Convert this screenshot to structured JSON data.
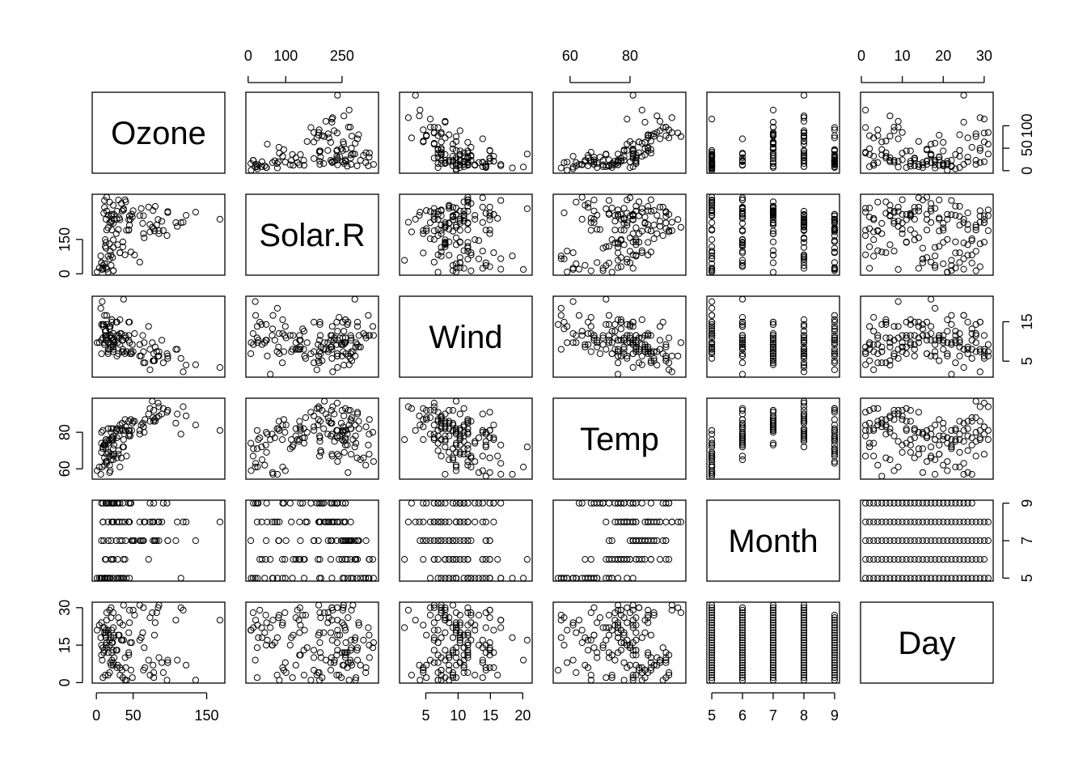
{
  "chart_data": {
    "type": "scatter",
    "kind": "scatterplot-matrix",
    "title": "",
    "variables": [
      {
        "name": "Ozone",
        "range": [
          1,
          168
        ],
        "ticks": [
          0,
          50,
          150
        ],
        "tick_side": "bottom",
        "values": [
          41,
          36,
          12,
          18,
          null,
          28,
          23,
          19,
          8,
          null,
          7,
          16,
          11,
          14,
          18,
          14,
          34,
          6,
          30,
          11,
          1,
          11,
          4,
          32,
          null,
          null,
          null,
          23,
          45,
          115,
          37,
          null,
          null,
          null,
          null,
          null,
          null,
          29,
          null,
          71,
          39,
          null,
          null,
          23,
          null,
          null,
          21,
          37,
          20,
          12,
          13,
          null,
          null,
          null,
          null,
          null,
          null,
          null,
          null,
          null,
          null,
          135,
          49,
          32,
          null,
          64,
          40,
          77,
          97,
          97,
          85,
          null,
          10,
          27,
          null,
          7,
          48,
          35,
          61,
          79,
          63,
          16,
          null,
          null,
          80,
          108,
          20,
          52,
          82,
          50,
          64,
          59,
          39,
          9,
          16,
          78,
          35,
          66,
          122,
          89,
          110,
          null,
          null,
          44,
          28,
          65,
          null,
          22,
          59,
          23,
          31,
          44,
          21,
          9,
          null,
          45,
          168,
          73,
          null,
          76,
          118,
          84,
          85,
          96,
          78,
          73,
          91,
          47,
          32,
          20,
          23,
          21,
          24,
          44,
          21,
          28,
          9,
          13,
          46,
          18,
          13,
          24,
          16,
          13,
          23,
          36,
          7,
          14,
          30,
          null,
          14,
          18,
          20
        ]
      },
      {
        "name": "Solar.R",
        "range": [
          7,
          334
        ],
        "ticks": [
          0,
          100,
          250
        ],
        "tick_side": "top",
        "values": [
          190,
          118,
          149,
          313,
          null,
          null,
          299,
          99,
          19,
          194,
          null,
          256,
          290,
          274,
          65,
          334,
          307,
          78,
          322,
          44,
          8,
          320,
          25,
          92,
          66,
          266,
          null,
          13,
          252,
          223,
          279,
          286,
          287,
          242,
          186,
          220,
          264,
          127,
          273,
          291,
          323,
          259,
          250,
          148,
          332,
          322,
          191,
          284,
          37,
          120,
          137,
          150,
          59,
          91,
          250,
          135,
          127,
          47,
          98,
          31,
          138,
          269,
          248,
          236,
          101,
          175,
          314,
          276,
          267,
          272,
          175,
          139,
          264,
          175,
          291,
          48,
          260,
          274,
          285,
          187,
          220,
          7,
          258,
          295,
          294,
          223,
          81,
          82,
          213,
          275,
          253,
          254,
          83,
          24,
          77,
          null,
          null,
          null,
          255,
          229,
          207,
          222,
          137,
          192,
          273,
          157,
          64,
          71,
          51,
          115,
          244,
          190,
          259,
          36,
          255,
          212,
          238,
          215,
          153,
          203,
          225,
          237,
          188,
          167,
          197,
          183,
          189,
          95,
          92,
          252,
          220,
          230,
          259,
          236,
          259,
          238,
          24,
          112,
          237,
          224,
          27,
          238,
          201,
          238,
          14,
          139,
          49,
          20,
          193,
          145,
          191,
          131,
          223
        ]
      },
      {
        "name": "Wind",
        "range": [
          1.7,
          20.7
        ],
        "ticks": [
          5,
          10,
          15,
          20
        ],
        "tick_side": "bottom",
        "values": [
          7.4,
          8,
          12.6,
          11.5,
          14.3,
          14.9,
          8.6,
          13.8,
          20.1,
          8.6,
          6.9,
          9.7,
          9.2,
          10.9,
          13.2,
          11.5,
          12,
          18.4,
          11.5,
          9.7,
          9.7,
          16.6,
          9.7,
          12,
          16.6,
          14.9,
          8,
          12,
          14.9,
          5.7,
          7.4,
          8.6,
          9.7,
          16.1,
          9.2,
          8.6,
          14.3,
          9.7,
          6.9,
          13.8,
          11.5,
          10.9,
          9.2,
          8,
          13.8,
          11.5,
          14.9,
          20.7,
          9.2,
          11.5,
          10.3,
          6.3,
          1.7,
          4.6,
          6.3,
          8,
          8,
          10.3,
          11.5,
          14.9,
          8,
          4.1,
          9.2,
          9.2,
          10.9,
          4.6,
          10.9,
          5.1,
          6.3,
          5.7,
          7.4,
          8.6,
          14.3,
          14.9,
          14.9,
          14.3,
          6.9,
          10.3,
          6.3,
          5.1,
          11.5,
          6.9,
          9.7,
          11.5,
          8.6,
          8,
          8.6,
          12,
          7.4,
          7.4,
          7.4,
          9.2,
          6.9,
          13.8,
          7.4,
          6.9,
          7.4,
          4.6,
          4,
          10.3,
          8,
          8.6,
          11.5,
          11.5,
          11.5,
          9.7,
          11.5,
          10.3,
          6.3,
          7.4,
          10.9,
          10.3,
          15.5,
          14.3,
          12.6,
          9.7,
          3.4,
          8,
          5.7,
          9.7,
          2.3,
          6.3,
          6.3,
          6.9,
          5.1,
          2.8,
          4.6,
          7.4,
          15.5,
          10.9,
          10.3,
          10.9,
          9.7,
          14.9,
          15.5,
          6.3,
          10.9,
          11.5,
          6.9,
          13.8,
          10.3,
          10.3,
          8,
          12.6,
          9.2,
          10.3,
          10.3,
          16.6,
          6.9,
          13.2,
          14.3,
          8,
          11.5
        ]
      },
      {
        "name": "Temp",
        "range": [
          56,
          97
        ],
        "ticks": [
          60,
          80
        ],
        "tick_side": "top",
        "values": [
          67,
          72,
          74,
          62,
          56,
          66,
          65,
          59,
          61,
          69,
          74,
          69,
          66,
          68,
          58,
          64,
          66,
          57,
          68,
          62,
          59,
          73,
          61,
          61,
          57,
          58,
          57,
          67,
          81,
          79,
          76,
          78,
          74,
          67,
          84,
          85,
          79,
          82,
          87,
          90,
          87,
          93,
          92,
          82,
          80,
          79,
          77,
          72,
          65,
          73,
          76,
          77,
          76,
          76,
          76,
          75,
          78,
          73,
          80,
          77,
          83,
          84,
          85,
          81,
          84,
          83,
          83,
          88,
          92,
          92,
          89,
          82,
          73,
          81,
          91,
          80,
          81,
          82,
          84,
          87,
          85,
          74,
          81,
          82,
          86,
          85,
          82,
          86,
          88,
          86,
          83,
          81,
          81,
          81,
          82,
          86,
          85,
          87,
          89,
          90,
          90,
          92,
          86,
          86,
          82,
          80,
          79,
          77,
          79,
          76,
          78,
          78,
          77,
          72,
          75,
          79,
          81,
          86,
          88,
          97,
          94,
          96,
          94,
          91,
          92,
          93,
          93,
          87,
          84,
          80,
          78,
          75,
          73,
          81,
          76,
          77,
          71,
          71,
          78,
          67,
          76,
          68,
          82,
          64,
          71,
          81,
          69,
          63,
          70,
          77,
          75,
          76,
          68
        ]
      },
      {
        "name": "Month",
        "range": [
          5,
          9
        ],
        "ticks": [
          5,
          6,
          7,
          8,
          9
        ],
        "tick_side": "bottom",
        "values": [
          5,
          5,
          5,
          5,
          5,
          5,
          5,
          5,
          5,
          5,
          5,
          5,
          5,
          5,
          5,
          5,
          5,
          5,
          5,
          5,
          5,
          5,
          5,
          5,
          5,
          5,
          5,
          5,
          5,
          5,
          5,
          6,
          6,
          6,
          6,
          6,
          6,
          6,
          6,
          6,
          6,
          6,
          6,
          6,
          6,
          6,
          6,
          6,
          6,
          6,
          6,
          6,
          6,
          6,
          6,
          6,
          6,
          6,
          6,
          6,
          6,
          7,
          7,
          7,
          7,
          7,
          7,
          7,
          7,
          7,
          7,
          7,
          7,
          7,
          7,
          7,
          7,
          7,
          7,
          7,
          7,
          7,
          7,
          7,
          7,
          7,
          7,
          7,
          7,
          7,
          7,
          7,
          8,
          8,
          8,
          8,
          8,
          8,
          8,
          8,
          8,
          8,
          8,
          8,
          8,
          8,
          8,
          8,
          8,
          8,
          8,
          8,
          8,
          8,
          8,
          8,
          8,
          8,
          8,
          8,
          8,
          8,
          8,
          9,
          9,
          9,
          9,
          9,
          9,
          9,
          9,
          9,
          9,
          9,
          9,
          9,
          9,
          9,
          9,
          9,
          9,
          9,
          9,
          9,
          9,
          9,
          9,
          9,
          9,
          9
        ]
      },
      {
        "name": "Day",
        "range": [
          1,
          31
        ],
        "ticks": [
          0,
          10,
          20,
          30
        ],
        "tick_side": "top",
        "values": [
          1,
          2,
          3,
          4,
          5,
          6,
          7,
          8,
          9,
          10,
          11,
          12,
          13,
          14,
          15,
          16,
          17,
          18,
          19,
          20,
          21,
          22,
          23,
          24,
          25,
          26,
          27,
          28,
          29,
          30,
          31,
          1,
          2,
          3,
          4,
          5,
          6,
          7,
          8,
          9,
          10,
          11,
          12,
          13,
          14,
          15,
          16,
          17,
          18,
          19,
          20,
          21,
          22,
          23,
          24,
          25,
          26,
          27,
          28,
          29,
          30,
          1,
          2,
          3,
          4,
          5,
          6,
          7,
          8,
          9,
          10,
          11,
          12,
          13,
          14,
          15,
          16,
          17,
          18,
          19,
          20,
          21,
          22,
          23,
          24,
          25,
          26,
          27,
          28,
          29,
          30,
          31,
          1,
          2,
          3,
          4,
          5,
          6,
          7,
          8,
          9,
          10,
          11,
          12,
          13,
          14,
          15,
          16,
          17,
          18,
          19,
          20,
          21,
          22,
          23,
          24,
          25,
          26,
          27,
          28,
          29,
          30,
          31,
          1,
          2,
          3,
          4,
          5,
          6,
          7,
          8,
          9,
          10,
          11,
          12,
          13,
          14,
          15,
          16,
          17,
          18,
          19,
          20,
          21,
          22,
          23,
          24,
          25,
          26,
          27,
          28,
          29,
          30
        ]
      }
    ],
    "side_ticks": [
      {
        "variable": "Ozone",
        "side": "right",
        "ticks": [
          0,
          50,
          100
        ]
      },
      {
        "variable": "Solar.R",
        "side": "left",
        "ticks": [
          0,
          150
        ]
      },
      {
        "variable": "Wind",
        "side": "right",
        "ticks": [
          5,
          15
        ]
      },
      {
        "variable": "Temp",
        "side": "left",
        "ticks": [
          60,
          80
        ]
      },
      {
        "variable": "Month",
        "side": "right",
        "ticks": [
          5,
          7,
          9
        ]
      },
      {
        "variable": "Day",
        "side": "left",
        "ticks": [
          0,
          15,
          30
        ]
      }
    ],
    "grid": false,
    "marker": "open-circle"
  }
}
